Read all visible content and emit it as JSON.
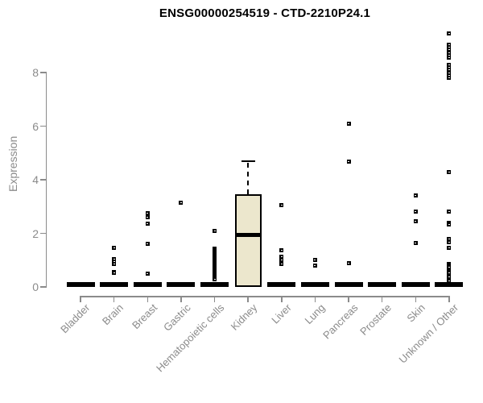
{
  "chart_data": {
    "type": "boxplot-scatter",
    "title": "ENSG00000254519 - CTD-2210P24.1",
    "ylabel": "Expression",
    "xlabel": "",
    "ylim": [
      0,
      9.6
    ],
    "yticks": [
      0,
      2,
      4,
      6,
      8
    ],
    "grid": false,
    "legend": "none",
    "colors": {
      "box_fill": "#ece7cd",
      "box_border": "#000000",
      "point": "#000000",
      "axis": "#8b8b8b",
      "title": "#000000"
    },
    "categories": [
      "Bladder",
      "Brain",
      "Breast",
      "Gastric",
      "Hematopoietic cells",
      "Kidney",
      "Liver",
      "Lung",
      "Pancreas",
      "Prostate",
      "Skin",
      "Unknown / Other"
    ],
    "series": [
      {
        "category": "Bladder",
        "median": 0,
        "zero_bar": true,
        "points": []
      },
      {
        "category": "Brain",
        "median": 0,
        "zero_bar": true,
        "points": [
          1.45,
          1.05,
          0.95,
          0.85,
          0.57,
          0.52
        ]
      },
      {
        "category": "Breast",
        "median": 0,
        "zero_bar": true,
        "points": [
          2.75,
          2.6,
          2.35,
          1.6,
          0.5
        ]
      },
      {
        "category": "Gastric",
        "median": 0,
        "zero_bar": true,
        "points": [
          3.15
        ]
      },
      {
        "category": "Hematopoietic cells",
        "median": 0,
        "zero_bar": true,
        "points": [
          2.1,
          1.42,
          1.36,
          1.3,
          1.24,
          1.18,
          1.12,
          1.06,
          1.0,
          0.94,
          0.88,
          0.82,
          0.76,
          0.7,
          0.64,
          0.58,
          0.52,
          0.46,
          0.4,
          0.34,
          0.28
        ]
      },
      {
        "category": "Kidney",
        "zero_bar": false,
        "points": [],
        "box": {
          "whisker_low": 0,
          "q1": 0,
          "median": 1.95,
          "q3": 3.45,
          "whisker_high": 4.7
        }
      },
      {
        "category": "Liver",
        "median": 0,
        "zero_bar": true,
        "points": [
          3.05,
          1.38,
          1.12,
          1.0,
          0.87
        ]
      },
      {
        "category": "Lung",
        "median": 0,
        "zero_bar": true,
        "points": [
          1.0,
          0.8
        ]
      },
      {
        "category": "Pancreas",
        "median": 0,
        "zero_bar": true,
        "points": [
          6.1,
          4.68,
          0.9
        ]
      },
      {
        "category": "Prostate",
        "median": 0,
        "zero_bar": true,
        "points": []
      },
      {
        "category": "Skin",
        "median": 0,
        "zero_bar": true,
        "points": [
          3.4,
          2.8,
          2.45,
          1.65
        ]
      },
      {
        "category": "Unknown / Other",
        "median": 0,
        "zero_bar": true,
        "points": [
          9.45,
          9.05,
          8.95,
          8.85,
          8.75,
          8.65,
          8.55,
          8.3,
          8.2,
          8.1,
          8.0,
          7.9,
          7.8,
          4.28,
          2.82,
          2.38,
          2.32,
          1.78,
          1.66,
          1.45,
          0.87,
          0.8,
          0.73,
          0.66,
          0.59,
          0.52,
          0.38,
          0.23
        ]
      }
    ]
  }
}
